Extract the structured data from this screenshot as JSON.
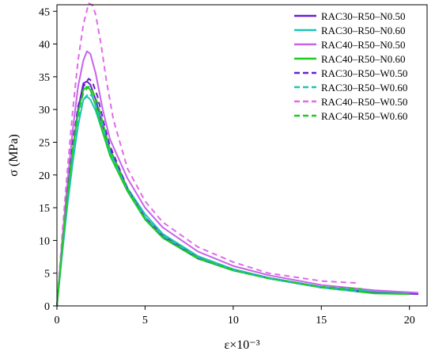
{
  "chart_data": {
    "type": "line",
    "xlabel": "ε×10⁻³",
    "ylabel": "σ (MPa)",
    "xlim": [
      0,
      21
    ],
    "ylim": [
      0,
      46
    ],
    "xticks": [
      0,
      5,
      10,
      15,
      20
    ],
    "yticks": [
      0,
      5,
      10,
      15,
      20,
      25,
      30,
      35,
      40,
      45
    ],
    "legend_position": "top-right",
    "grid": false,
    "series": [
      {
        "name": "RAC30–R50–N0.50",
        "color": "#6a1fd1",
        "dash": false,
        "x": [
          0,
          0.3,
          0.6,
          0.9,
          1.2,
          1.5,
          1.7,
          1.9,
          2.2,
          2.6,
          3.0,
          4.0,
          5.0,
          6.0,
          8.0,
          10.0,
          12.0,
          15.0,
          18.0,
          20.5
        ],
        "y": [
          0,
          9,
          17,
          24,
          30,
          34,
          34.3,
          33.8,
          31.5,
          27.5,
          24,
          18,
          13.5,
          10.8,
          7.5,
          5.6,
          4.3,
          2.9,
          2.1,
          1.8
        ]
      },
      {
        "name": "RAC30–R50–N0.60",
        "color": "#1ec4b4",
        "dash": false,
        "x": [
          0,
          0.3,
          0.6,
          0.9,
          1.2,
          1.5,
          1.7,
          1.9,
          2.2,
          2.6,
          3.0,
          4.0,
          5.0,
          6.0,
          8.0,
          10.0,
          12.0,
          15.0,
          18.0,
          20.5
        ],
        "y": [
          0,
          8,
          15.5,
          22,
          27.5,
          31.5,
          32,
          31.5,
          29.8,
          26.5,
          23.5,
          18,
          14,
          11,
          7.6,
          5.6,
          4.3,
          2.9,
          2.2,
          2.0
        ]
      },
      {
        "name": "RAC40–R50–N0.50",
        "color": "#c763ea",
        "dash": false,
        "x": [
          0,
          0.3,
          0.6,
          0.9,
          1.2,
          1.5,
          1.7,
          1.9,
          2.2,
          2.6,
          3.0,
          4.0,
          5.0,
          6.0,
          8.0,
          10.0,
          12.0,
          15.0,
          18.0,
          20.5
        ],
        "y": [
          0,
          10,
          19,
          27,
          33.5,
          37.5,
          38.9,
          38.5,
          35.5,
          30,
          25.5,
          19.5,
          15,
          12,
          8.3,
          6.1,
          4.7,
          3.2,
          2.4,
          2.0
        ]
      },
      {
        "name": "RAC40–R50–N0.60",
        "color": "#1ecb1e",
        "dash": false,
        "x": [
          0,
          0.3,
          0.6,
          0.9,
          1.2,
          1.5,
          1.7,
          1.9,
          2.2,
          2.6,
          3.0,
          4.0,
          5.0,
          6.0,
          8.0,
          10.0,
          12.0,
          15.0,
          18.0,
          20.0
        ],
        "y": [
          0,
          9,
          17,
          24,
          29.5,
          33,
          33.5,
          33,
          30.5,
          26.5,
          23,
          17.5,
          13.2,
          10.4,
          7.2,
          5.4,
          4.2,
          2.8,
          1.9,
          1.8
        ]
      },
      {
        "name": "RAC30–R50–W0.50",
        "color": "#6a1fd1",
        "dash": true,
        "x": [
          0,
          0.3,
          0.6,
          0.9,
          1.2,
          1.5,
          1.8,
          2.0,
          2.3,
          2.7,
          3.0,
          4.0,
          5.0,
          6.0,
          8.0,
          10.0,
          12.0,
          15.0,
          17.2
        ],
        "y": [
          0,
          9,
          17.5,
          25,
          30.5,
          33.5,
          34.7,
          34.3,
          32,
          27.5,
          24.5,
          18,
          13.5,
          10.6,
          7.3,
          5.5,
          4.2,
          2.8,
          2.2
        ]
      },
      {
        "name": "RAC30–R50–W0.60",
        "color": "#1ec4b4",
        "dash": true,
        "x": [
          0,
          0.3,
          0.6,
          0.9,
          1.2,
          1.5,
          1.8,
          2.0,
          2.3,
          2.7,
          3.0,
          4.0,
          5.0,
          6.0,
          8.0,
          10.0,
          12.0,
          15.0,
          17.0
        ],
        "y": [
          0,
          8.5,
          16,
          23,
          28.5,
          31.5,
          32.5,
          32,
          30,
          26.5,
          23.5,
          17.8,
          13.5,
          10.7,
          7.4,
          5.5,
          4.2,
          2.8,
          2.2
        ]
      },
      {
        "name": "RAC40–R50–W0.50",
        "color": "#e06ae8",
        "dash": true,
        "x": [
          0,
          0.3,
          0.6,
          0.9,
          1.2,
          1.5,
          1.8,
          2.0,
          2.2,
          2.5,
          2.8,
          3.2,
          4.0,
          5.0,
          6.0,
          8.0,
          10.0,
          12.0,
          15.0,
          17.0
        ],
        "y": [
          0,
          11,
          21,
          30,
          37.5,
          43,
          46.2,
          46,
          44.5,
          40,
          34.5,
          28.5,
          21,
          16,
          12.8,
          9,
          6.7,
          5.0,
          3.8,
          3.5
        ]
      },
      {
        "name": "RAC40–R50–W0.60",
        "color": "#1ecb1e",
        "dash": true,
        "x": [
          0,
          0.3,
          0.6,
          0.9,
          1.2,
          1.5,
          1.8,
          2.0,
          2.3,
          2.7,
          3.0,
          4.0,
          5.0,
          6.0,
          8.0,
          10.0,
          12.0,
          15.0,
          17.3
        ],
        "y": [
          0,
          9,
          17,
          24,
          29.5,
          32.5,
          33.5,
          33,
          31,
          27,
          24,
          17.8,
          13.3,
          10.5,
          7.3,
          5.5,
          4.2,
          2.9,
          2.6
        ]
      }
    ]
  }
}
